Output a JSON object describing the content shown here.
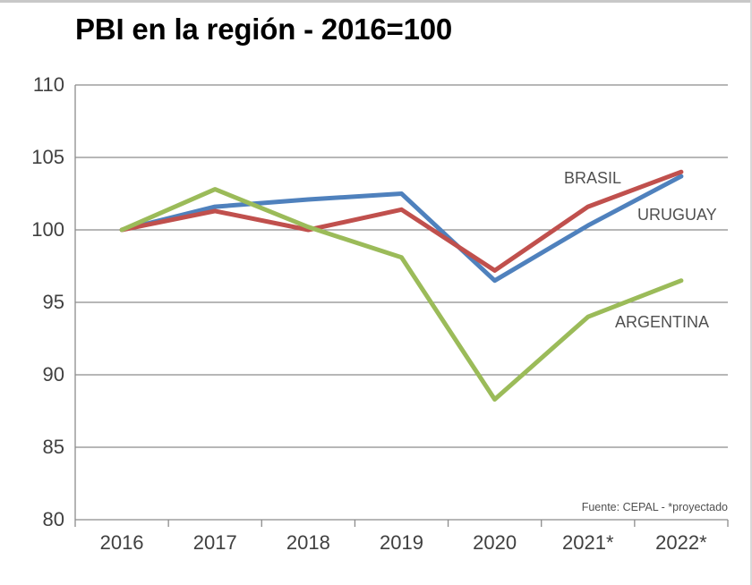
{
  "chart_data": {
    "type": "line",
    "title": "PBI en la región - 2016=100",
    "categories": [
      "2016",
      "2017",
      "2018",
      "2019",
      "2020",
      "2021*",
      "2022*"
    ],
    "ylim": [
      80,
      110
    ],
    "yticks": [
      80,
      85,
      90,
      95,
      100,
      105,
      110
    ],
    "grid": true,
    "series": [
      {
        "name": "BRASIL",
        "color": "#c0504d",
        "values": [
          100,
          101.3,
          100,
          101.4,
          97.2,
          101.6,
          104.0
        ]
      },
      {
        "name": "URUGUAY",
        "color": "#4f81bd",
        "values": [
          100,
          101.6,
          102.1,
          102.5,
          96.5,
          100.3,
          103.7
        ]
      },
      {
        "name": "ARGENTINA",
        "color": "#9bbb59",
        "values": [
          100,
          102.8,
          100.2,
          98.1,
          88.3,
          94.0,
          96.5
        ]
      }
    ],
    "source_note": "Fuente: CEPAL - *proyectado"
  }
}
